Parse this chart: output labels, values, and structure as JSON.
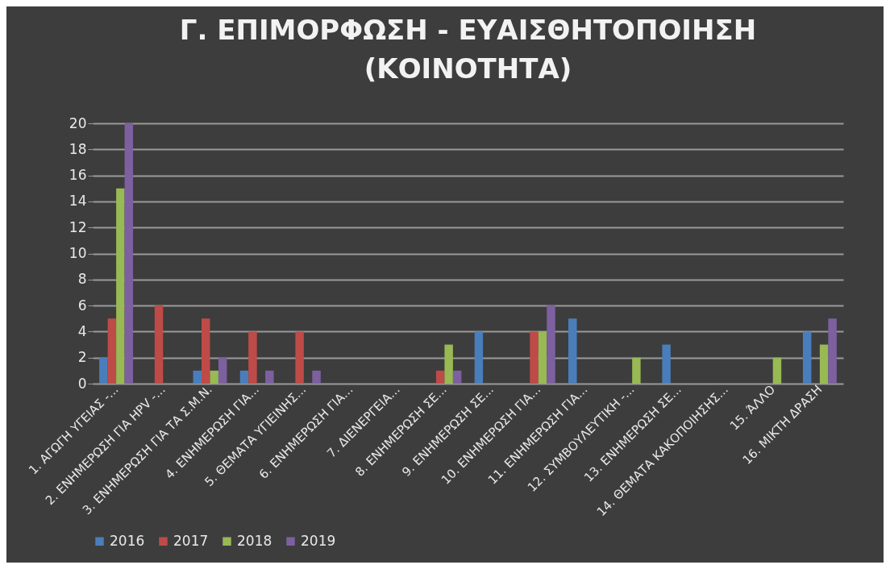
{
  "chart_data": {
    "type": "bar",
    "title": "Γ. ΕΠΙΜΟΡΦΩΣΗ - ΕΥΑΙΣΘΗΤΟΠΟΙΗΣΗ\n(ΚΟΙΝΟΤΗΤΑ)",
    "categories": [
      "1. ΑΓΩΓΗ ΥΓΕΙΑΣ -...",
      "2. ΕΝΗΜΕΡΩΣΗ ΓΙΑ HPV -...",
      "3. ΕΝΗΜΕΡΩΣΗ ΓΙΑ ΤΑ Σ.Μ.Ν.",
      "4. ΕΝΗΜΕΡΩΣΗ ΓΙΑ...",
      "5. ΘΕΜΑΤΑ ΥΓΙΕΙΝΗΣ...",
      "6. ΕΝΗΜΕΡΩΣΗ ΓΙΑ...",
      "7. ΔΙΕΝΕΡΓΕΙΑ...",
      "8. ΕΝΗΜΕΡΩΣΗ ΣΕ...",
      "9. ΕΝΗΜΕΡΩΣΗ ΣΕ...",
      "10. ΕΝΗΜΕΡΩΣΗ ΓΙΑ...",
      "11. ΕΝΗΜΕΡΩΣΗ ΓΙΑ...",
      "12. ΣΥΜΒΟΥΛΕΥΤΙΚΗ -...",
      "13. ΕΝΗΜΕΡΩΣΗ ΣΕ...",
      "14. ΘΕΜΑΤΑ ΚΑΚΟΠΟΙΗΣΗΣ...",
      "15. ΆΛΛΟ",
      "16. ΜΙΚΤΗ ΔΡΑΣΗ"
    ],
    "series": [
      {
        "name": "2016",
        "color": "#4a7ebb",
        "values": [
          2,
          0,
          1,
          1,
          0,
          0,
          0,
          0,
          4,
          0,
          5,
          0,
          3,
          0,
          0,
          4
        ]
      },
      {
        "name": "2017",
        "color": "#be4b48",
        "values": [
          5,
          6,
          5,
          4,
          4,
          0,
          0,
          1,
          0,
          4,
          0,
          0,
          0,
          0,
          0,
          0
        ]
      },
      {
        "name": "2018",
        "color": "#98b954",
        "values": [
          15,
          0,
          1,
          0,
          0,
          0,
          0,
          3,
          0,
          4,
          0,
          2,
          0,
          0,
          2,
          3
        ]
      },
      {
        "name": "2019",
        "color": "#7d60a0",
        "values": [
          20,
          0,
          2,
          1,
          1,
          0,
          0,
          1,
          0,
          6,
          0,
          0,
          0,
          0,
          0,
          5
        ]
      }
    ],
    "ylim": [
      0,
      20
    ],
    "yticks": [
      0,
      2,
      4,
      6,
      8,
      10,
      12,
      14,
      16,
      18,
      20
    ],
    "grid": "y",
    "legend": "bottom"
  }
}
